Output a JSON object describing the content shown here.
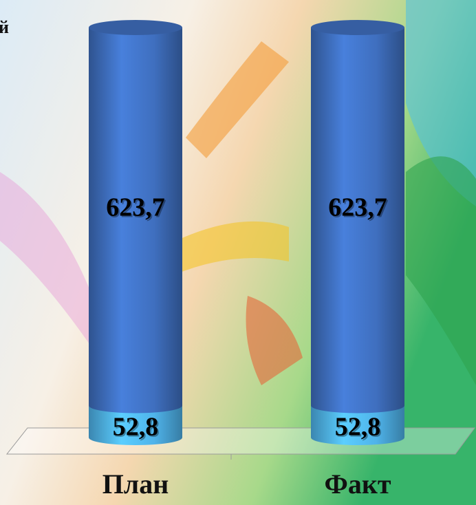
{
  "chart_data": {
    "type": "bar3d-stacked",
    "annotations": [
      "й"
    ],
    "categories": [
      "План",
      "Факт"
    ],
    "series": [
      {
        "color": "#4fb3ea",
        "values": [
          52.8,
          52.8
        ],
        "value_labels": [
          "52,8",
          "52,8"
        ]
      },
      {
        "color": "#3f6fbf",
        "values": [
          623.7,
          623.7
        ],
        "value_labels": [
          "623,7",
          "623,7"
        ]
      }
    ]
  }
}
